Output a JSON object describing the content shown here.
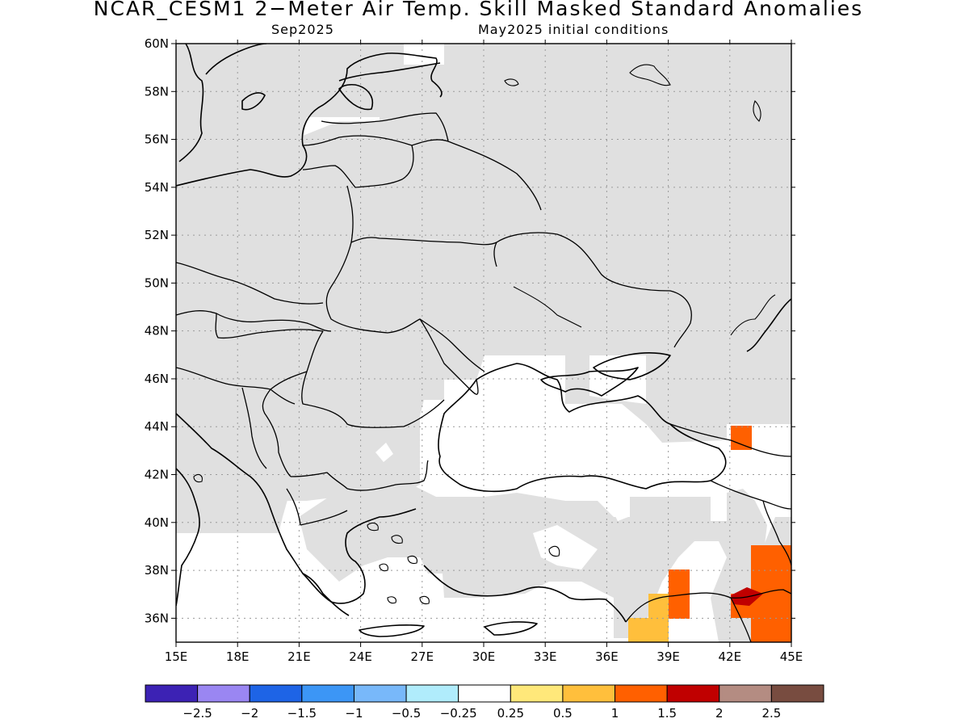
{
  "header": {
    "title": "NCAR_CESM1 2−Meter Air Temp. Skill Masked Standard Anomalies",
    "target_month": "Sep2025",
    "initial_conditions": "May2025 initial conditions"
  },
  "map": {
    "lon_range": [
      15,
      45
    ],
    "lat_range": [
      35,
      60
    ],
    "grid": true,
    "lon_ticks": [
      {
        "value": 15,
        "label": "15E"
      },
      {
        "value": 18,
        "label": "18E"
      },
      {
        "value": 21,
        "label": "21E"
      },
      {
        "value": 24,
        "label": "24E"
      },
      {
        "value": 27,
        "label": "27E"
      },
      {
        "value": 30,
        "label": "30E"
      },
      {
        "value": 33,
        "label": "33E"
      },
      {
        "value": 36,
        "label": "36E"
      },
      {
        "value": 39,
        "label": "39E"
      },
      {
        "value": 42,
        "label": "42E"
      },
      {
        "value": 45,
        "label": "45E"
      }
    ],
    "lat_ticks": [
      {
        "value": 36,
        "label": "36N"
      },
      {
        "value": 38,
        "label": "38N"
      },
      {
        "value": 40,
        "label": "40N"
      },
      {
        "value": 42,
        "label": "42N"
      },
      {
        "value": 44,
        "label": "44N"
      },
      {
        "value": 46,
        "label": "46N"
      },
      {
        "value": 48,
        "label": "48N"
      },
      {
        "value": 50,
        "label": "50N"
      },
      {
        "value": 52,
        "label": "52N"
      },
      {
        "value": 54,
        "label": "54N"
      },
      {
        "value": 56,
        "label": "56N"
      },
      {
        "value": 58,
        "label": "58N"
      },
      {
        "value": 60,
        "label": "60N"
      }
    ],
    "mask_color": "#e0e0e0",
    "anomaly_cells": [
      {
        "lon": 42.5,
        "lat": 43.5,
        "value": 1.25
      },
      {
        "lon": 39.0,
        "lat": 37.5,
        "value": 1.25
      },
      {
        "lon": 38.0,
        "lat": 36.5,
        "value": 0.75
      },
      {
        "lon": 37.5,
        "lat": 35.5,
        "value": 0.75
      },
      {
        "lon": 43.0,
        "lat": 36.8,
        "value": 1.75
      },
      {
        "lon": 44.0,
        "lat": 37.0,
        "value": 1.25
      }
    ]
  },
  "colorbar": {
    "colors": [
      "#3c22b4",
      "#9a86f2",
      "#1e64e6",
      "#3c96f6",
      "#78b8fa",
      "#b0ecfc",
      "#ffffff",
      "#ffe87a",
      "#ffbf3c",
      "#ff6000",
      "#c00000",
      "#b48c82",
      "#784c40"
    ],
    "labels": [
      "−2.5",
      "−2",
      "−1.5",
      "−1",
      "−0.5",
      "−0.25",
      "0.25",
      "0.5",
      "1",
      "1.5",
      "2",
      "2.5"
    ]
  }
}
